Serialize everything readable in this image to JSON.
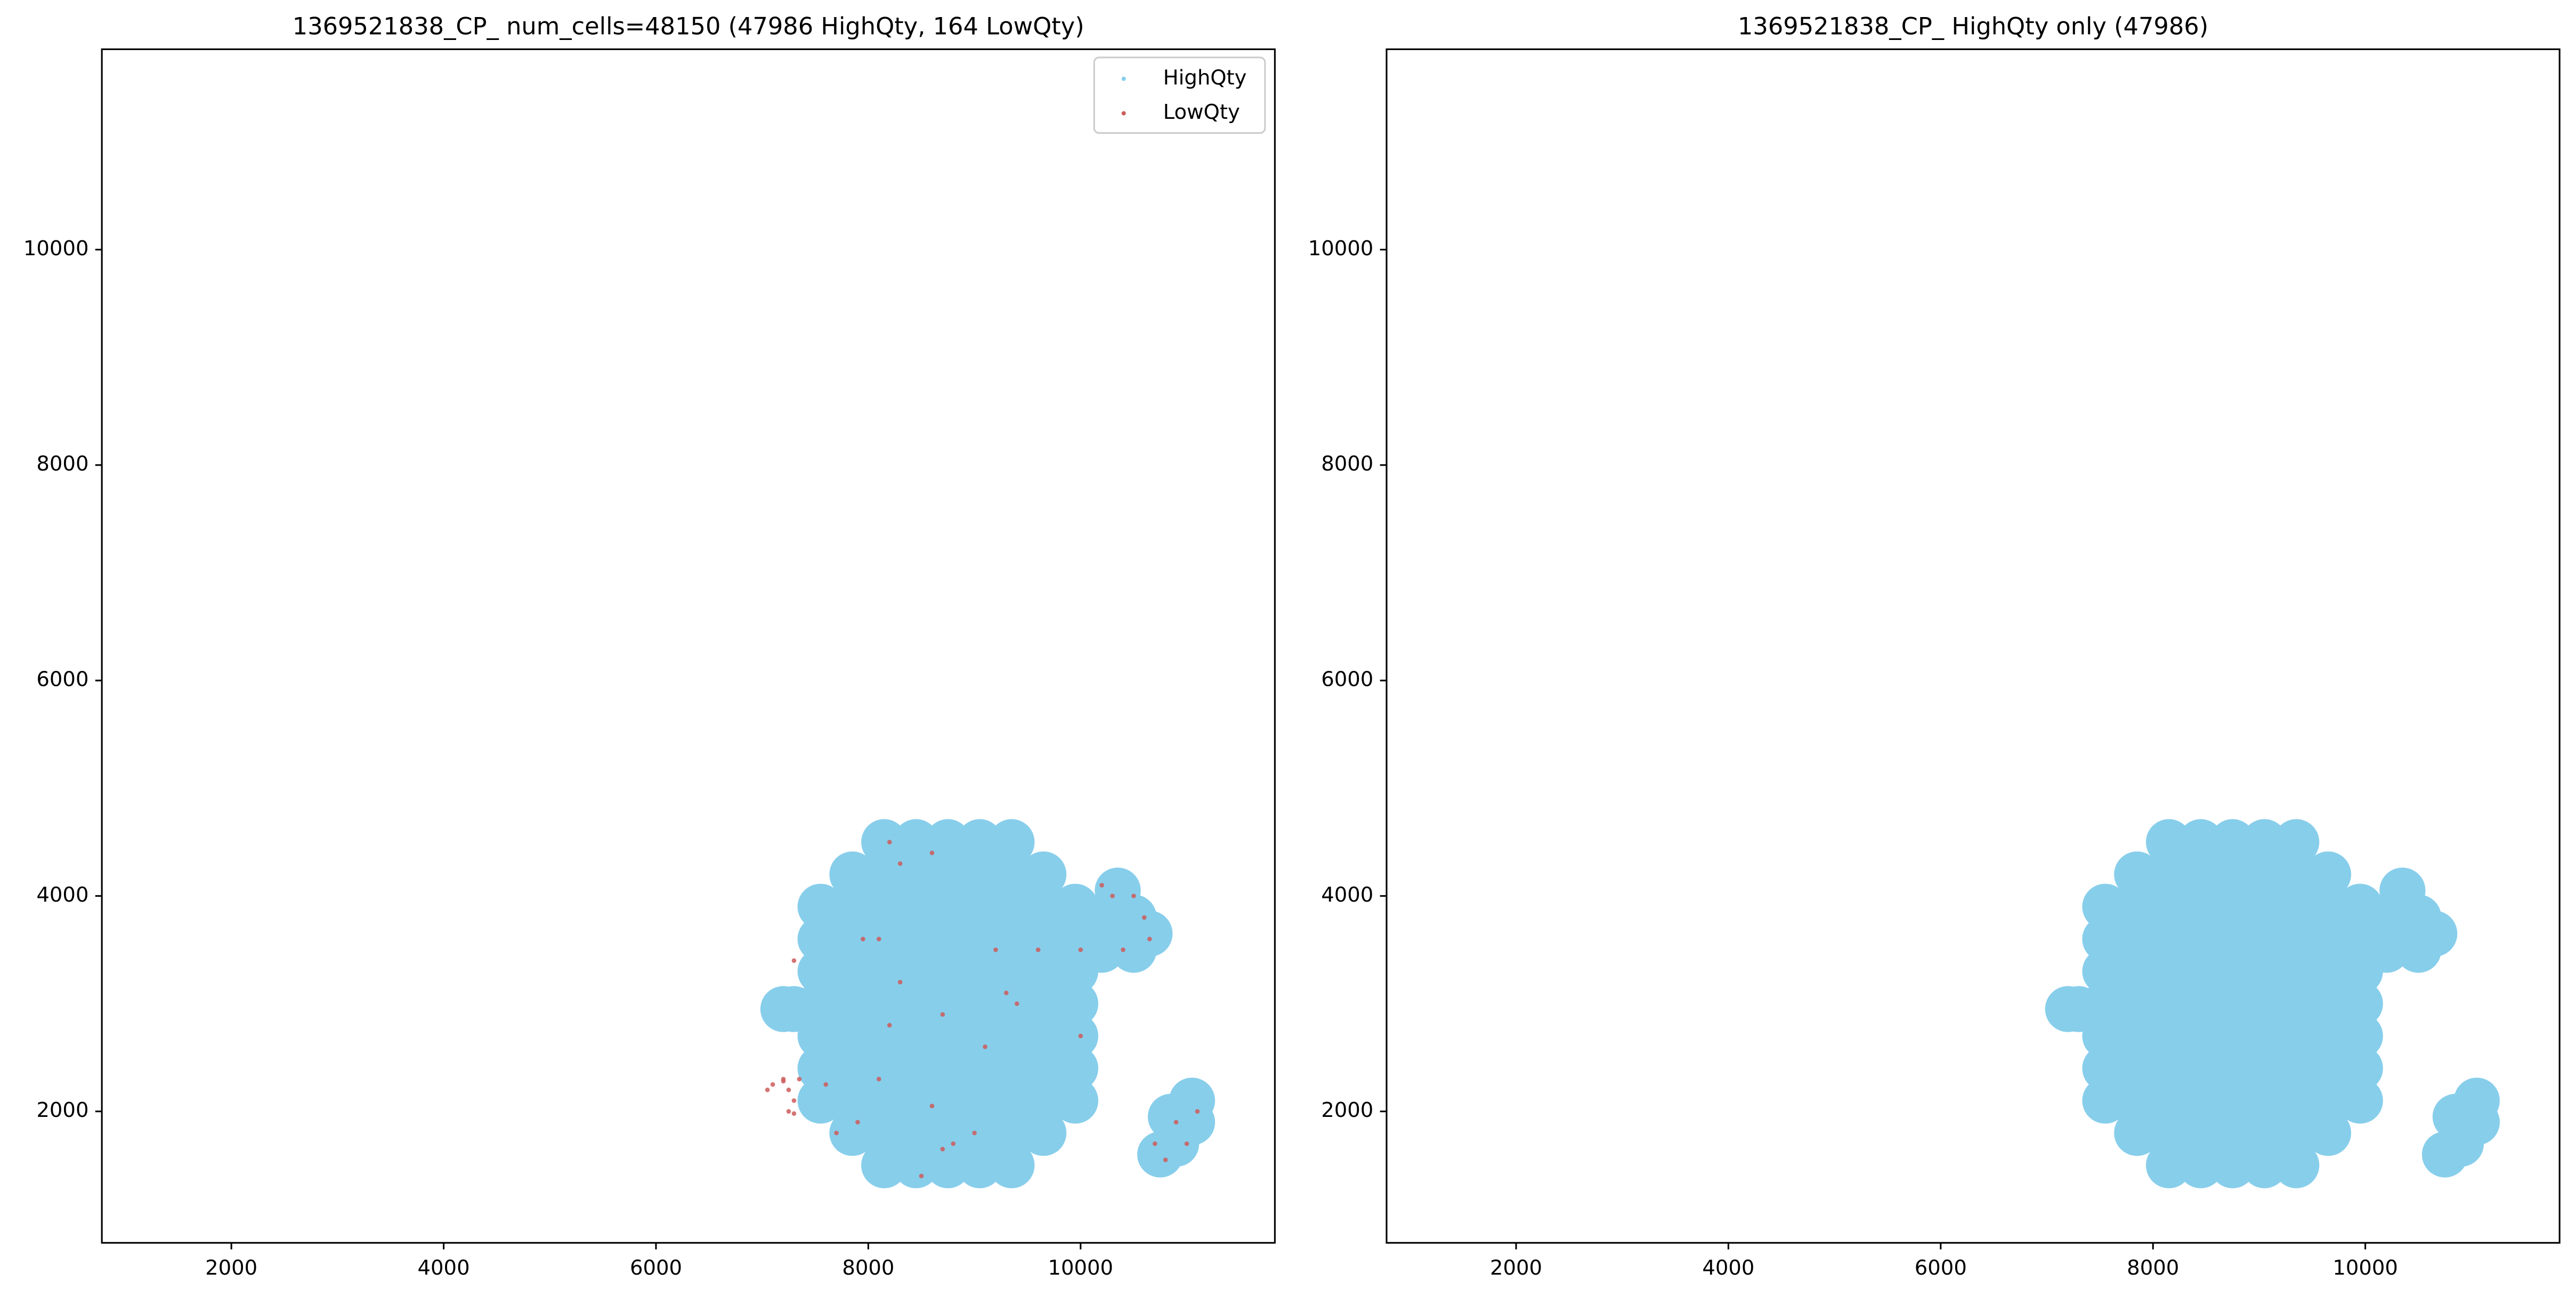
{
  "chart_data": [
    {
      "type": "scatter",
      "title": "1369521838_CP_ num_cells=48150 (47986 HighQty, 164 LowQty)",
      "xlim": [
        780,
        11830
      ],
      "ylim": [
        780,
        11860
      ],
      "xticks": [
        2000,
        4000,
        6000,
        8000,
        10000
      ],
      "yticks": [
        2000,
        4000,
        6000,
        8000,
        10000
      ],
      "legend": "upper right",
      "series": [
        {
          "name": "HighQty",
          "color": "#87ceeb",
          "x": [
            8150,
            8450,
            8750,
            9050,
            9350,
            7850,
            8150,
            8450,
            8750,
            9050,
            9350,
            9650,
            7550,
            7850,
            8150,
            8450,
            8750,
            9050,
            9350,
            9650,
            9950,
            7550,
            7850,
            8150,
            8450,
            8750,
            9050,
            9350,
            9650,
            9950,
            7550,
            7850,
            8150,
            8450,
            8750,
            9050,
            9350,
            9650,
            9950,
            7550,
            7850,
            8150,
            8450,
            8750,
            9050,
            9350,
            9650,
            9950,
            7550,
            7850,
            8150,
            8450,
            8750,
            9050,
            9350,
            9650,
            9950,
            7550,
            7850,
            8150,
            8450,
            8750,
            9050,
            9350,
            9650,
            9950,
            7550,
            7850,
            8150,
            8450,
            8750,
            9050,
            9350,
            9650,
            9950,
            7850,
            8150,
            8450,
            8750,
            9050,
            9350,
            9650,
            8150,
            8450,
            8750,
            9050,
            9350,
            10200,
            10500,
            10200,
            10500,
            10350,
            10650,
            10900,
            11050,
            10850,
            11050,
            10750,
            7200,
            7300
          ],
          "y": [
            1500,
            1500,
            1500,
            1500,
            1500,
            1800,
            1800,
            1800,
            1800,
            1800,
            1800,
            1800,
            2100,
            2100,
            2100,
            2100,
            2100,
            2100,
            2100,
            2100,
            2100,
            2400,
            2400,
            2400,
            2400,
            2400,
            2400,
            2400,
            2400,
            2400,
            2700,
            2700,
            2700,
            2700,
            2700,
            2700,
            2700,
            2700,
            2700,
            3000,
            3000,
            3000,
            3000,
            3000,
            3000,
            3000,
            3000,
            3000,
            3300,
            3300,
            3300,
            3300,
            3300,
            3300,
            3300,
            3300,
            3300,
            3600,
            3600,
            3600,
            3600,
            3600,
            3600,
            3600,
            3600,
            3600,
            3900,
            3900,
            3900,
            3900,
            3900,
            3900,
            3900,
            3900,
            3900,
            4200,
            4200,
            4200,
            4200,
            4200,
            4200,
            4200,
            4500,
            4500,
            4500,
            4500,
            4500,
            3500,
            3500,
            3800,
            3800,
            4050,
            3650,
            1700,
            1900,
            1950,
            2100,
            1600,
            2950,
            2950
          ]
        },
        {
          "name": "LowQty",
          "color": "#cd5c5c",
          "x": [
            7050,
            7100,
            7200,
            7250,
            7300,
            7250,
            7300,
            7200,
            7350,
            7300,
            7600,
            7700,
            7900,
            7950,
            8100,
            8300,
            8200,
            8100,
            8600,
            8700,
            8700,
            9100,
            9200,
            9400,
            9600,
            10200,
            10300,
            10500,
            10600,
            10650,
            10400,
            10700,
            10800,
            10900,
            11000,
            11100,
            8200,
            8300,
            8600,
            8500,
            8800,
            9000,
            9300,
            10000,
            10000
          ],
          "y": [
            2200,
            2250,
            2300,
            2200,
            2100,
            2000,
            1980,
            2280,
            2300,
            3400,
            2250,
            1800,
            1900,
            3600,
            3600,
            3200,
            2800,
            2300,
            2050,
            1650,
            2900,
            2600,
            3500,
            3000,
            3500,
            4100,
            4000,
            4000,
            3800,
            3600,
            3500,
            1700,
            1550,
            1900,
            1700,
            2000,
            4500,
            4300,
            4400,
            1400,
            1700,
            1800,
            3100,
            2700,
            3500
          ]
        }
      ]
    },
    {
      "type": "scatter",
      "title": "1369521838_CP_ HighQty only (47986)",
      "xlim": [
        780,
        11830
      ],
      "ylim": [
        780,
        11860
      ],
      "xticks": [
        2000,
        4000,
        6000,
        8000,
        10000
      ],
      "yticks": [
        2000,
        4000,
        6000,
        8000,
        10000
      ],
      "series": [
        {
          "color": "#87ceeb",
          "x": [
            8150,
            8450,
            8750,
            9050,
            9350,
            7850,
            8150,
            8450,
            8750,
            9050,
            9350,
            9650,
            7550,
            7850,
            8150,
            8450,
            8750,
            9050,
            9350,
            9650,
            9950,
            7550,
            7850,
            8150,
            8450,
            8750,
            9050,
            9350,
            9650,
            9950,
            7550,
            7850,
            8150,
            8450,
            8750,
            9050,
            9350,
            9650,
            9950,
            7550,
            7850,
            8150,
            8450,
            8750,
            9050,
            9350,
            9650,
            9950,
            7550,
            7850,
            8150,
            8450,
            8750,
            9050,
            9350,
            9650,
            9950,
            7550,
            7850,
            8150,
            8450,
            8750,
            9050,
            9350,
            9650,
            9950,
            7550,
            7850,
            8150,
            8450,
            8750,
            9050,
            9350,
            9650,
            9950,
            7850,
            8150,
            8450,
            8750,
            9050,
            9350,
            9650,
            8150,
            8450,
            8750,
            9050,
            9350,
            10200,
            10500,
            10200,
            10500,
            10350,
            10650,
            10900,
            11050,
            10850,
            11050,
            10750,
            7200,
            7300
          ],
          "y": [
            1500,
            1500,
            1500,
            1500,
            1500,
            1800,
            1800,
            1800,
            1800,
            1800,
            1800,
            1800,
            2100,
            2100,
            2100,
            2100,
            2100,
            2100,
            2100,
            2100,
            2100,
            2400,
            2400,
            2400,
            2400,
            2400,
            2400,
            2400,
            2400,
            2400,
            2700,
            2700,
            2700,
            2700,
            2700,
            2700,
            2700,
            2700,
            2700,
            3000,
            3000,
            3000,
            3000,
            3000,
            3000,
            3000,
            3000,
            3000,
            3300,
            3300,
            3300,
            3300,
            3300,
            3300,
            3300,
            3300,
            3300,
            3600,
            3600,
            3600,
            3600,
            3600,
            3600,
            3600,
            3600,
            3600,
            3900,
            3900,
            3900,
            3900,
            3900,
            3900,
            3900,
            3900,
            3900,
            4200,
            4200,
            4200,
            4200,
            4200,
            4200,
            4200,
            4500,
            4500,
            4500,
            4500,
            4500,
            3500,
            3500,
            3800,
            3800,
            4050,
            3650,
            1700,
            1900,
            1950,
            2100,
            1600,
            2950,
            2950
          ]
        }
      ]
    }
  ]
}
